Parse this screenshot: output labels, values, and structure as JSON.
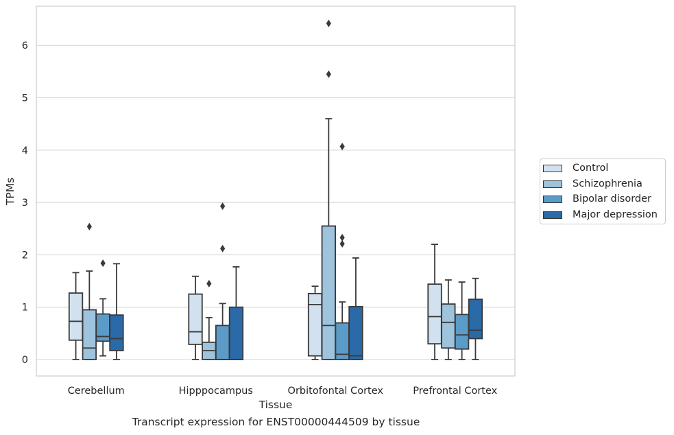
{
  "caption": "Transcript expression for ENST00000444509 by tissue",
  "chart_data": {
    "type": "box",
    "title": "",
    "xlabel": "Tissue",
    "ylabel": "TPMs",
    "ylim": [
      -0.3,
      6.8
    ],
    "yticks": [
      0,
      1,
      2,
      3,
      4,
      5,
      6
    ],
    "categories": [
      "Cerebellum",
      "Hipppocampus",
      "Orbitofontal Cortex",
      "Prefrontal Cortex"
    ],
    "grid": "horizontal",
    "legend_position": "right",
    "series": [
      {
        "name": "Control",
        "color": "#d2e1f0",
        "boxes": [
          {
            "whisker_low": 0.0,
            "q1": 0.37,
            "median": 0.73,
            "q3": 1.27,
            "whisker_high": 1.66,
            "outliers": []
          },
          {
            "whisker_low": 0.0,
            "q1": 0.29,
            "median": 0.53,
            "q3": 1.25,
            "whisker_high": 1.59,
            "outliers": []
          },
          {
            "whisker_low": 0.0,
            "q1": 0.07,
            "median": 1.05,
            "q3": 1.26,
            "whisker_high": 1.4,
            "outliers": []
          },
          {
            "whisker_low": 0.0,
            "q1": 0.3,
            "median": 0.82,
            "q3": 1.44,
            "whisker_high": 2.2,
            "outliers": []
          }
        ]
      },
      {
        "name": "Schizophrenia",
        "color": "#9dc3dd",
        "boxes": [
          {
            "whisker_low": 0.0,
            "q1": 0.0,
            "median": 0.22,
            "q3": 0.95,
            "whisker_high": 1.69,
            "outliers": [
              2.54
            ]
          },
          {
            "whisker_low": 0.0,
            "q1": 0.0,
            "median": 0.17,
            "q3": 0.33,
            "whisker_high": 0.8,
            "outliers": [
              1.45
            ]
          },
          {
            "whisker_low": 0.0,
            "q1": 0.0,
            "median": 0.65,
            "q3": 2.55,
            "whisker_high": 4.6,
            "outliers": [
              5.45,
              6.42
            ]
          },
          {
            "whisker_low": 0.0,
            "q1": 0.22,
            "median": 0.71,
            "q3": 1.06,
            "whisker_high": 1.52,
            "outliers": []
          }
        ]
      },
      {
        "name": "Bipolar disorder",
        "color": "#5b9bc8",
        "boxes": [
          {
            "whisker_low": 0.07,
            "q1": 0.35,
            "median": 0.44,
            "q3": 0.87,
            "whisker_high": 1.16,
            "outliers": [
              1.84
            ]
          },
          {
            "whisker_low": 0.0,
            "q1": 0.0,
            "median": 0.0,
            "q3": 0.65,
            "whisker_high": 1.07,
            "outliers": [
              2.12,
              2.93
            ]
          },
          {
            "whisker_low": 0.0,
            "q1": 0.0,
            "median": 0.1,
            "q3": 0.7,
            "whisker_high": 1.1,
            "outliers": [
              2.21,
              2.33,
              4.07
            ]
          },
          {
            "whisker_low": 0.0,
            "q1": 0.2,
            "median": 0.47,
            "q3": 0.86,
            "whisker_high": 1.48,
            "outliers": []
          }
        ]
      },
      {
        "name": "Major depression",
        "color": "#2b6aa8",
        "boxes": [
          {
            "whisker_low": 0.0,
            "q1": 0.17,
            "median": 0.4,
            "q3": 0.85,
            "whisker_high": 1.83,
            "outliers": []
          },
          {
            "whisker_low": 0.0,
            "q1": 0.0,
            "median": 0.0,
            "q3": 1.0,
            "whisker_high": 1.77,
            "outliers": []
          },
          {
            "whisker_low": 0.0,
            "q1": 0.0,
            "median": 0.07,
            "q3": 1.01,
            "whisker_high": 1.94,
            "outliers": []
          },
          {
            "whisker_low": 0.0,
            "q1": 0.4,
            "median": 0.56,
            "q3": 1.15,
            "whisker_high": 1.55,
            "outliers": []
          }
        ]
      }
    ]
  }
}
